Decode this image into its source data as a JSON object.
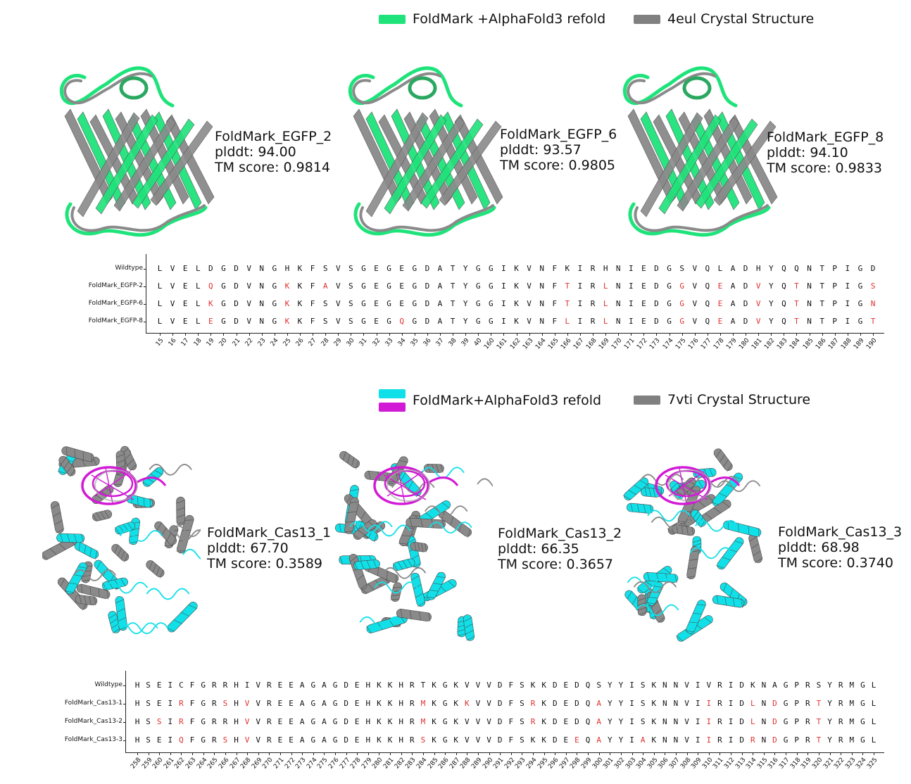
{
  "panels": [
    {
      "id": "egfp",
      "legend": [
        {
          "label": "FoldMark +AlphaFold3 refold",
          "colors": [
            "#1ee37a"
          ]
        },
        {
          "label": "4eul Crystal Structure",
          "colors": [
            "#808080"
          ]
        }
      ],
      "models": [
        {
          "name": "FoldMark_EGFP_2",
          "plddt": "plddt: 94.00",
          "tm": "TM score: 0.9814",
          "predicted_color": "#1ee37a"
        },
        {
          "name": "FoldMark_EGFP_6",
          "plddt": "plddt: 93.57",
          "tm": "TM score: 0.9805",
          "predicted_color": "#1ee37a"
        },
        {
          "name": "FoldMark_EGFP_8",
          "plddt": "plddt: 94.10",
          "tm": "TM score: 0.9833",
          "predicted_color": "#1ee37a"
        }
      ],
      "alignment": {
        "rows": [
          {
            "label": "Wildtype",
            "seq": "LVELDGDVNGHKFSVSGEGEGDATYGGIKVNFKIRHNIEDGSVQLADHYQQNTPIGD"
          },
          {
            "label": "FoldMark_EGFP-2",
            "seq": "LVELQGDVNGKKFAVSGEGEGDATYGGIKVNFTIRLNIEDGGVQEADVYQTNTPIGS"
          },
          {
            "label": "FoldMark_EGFP-6",
            "seq": "LVELKGDVNGKKFSVSGEGEGDATYGGIKVNFTIRLNIEDGGVQEADVYQTNTPIGN"
          },
          {
            "label": "FoldMark_EGFP-8",
            "seq": "LVELEGDVNGKKFSVSGEGQGDATYGGIKVNFLIRLNIEDGGVQEADVYQTNTPIGT"
          }
        ],
        "positions": [
          "15",
          "16",
          "17",
          "18",
          "19",
          "20",
          "21",
          "22",
          "23",
          "24",
          "25",
          "26",
          "27",
          "28",
          "29",
          "30",
          "31",
          "32",
          "33",
          "34",
          "35",
          "36",
          "37",
          "38",
          "39",
          "40",
          "160",
          "161",
          "162",
          "163",
          "164",
          "165",
          "166",
          "167",
          "168",
          "169",
          "170",
          "171",
          "172",
          "173",
          "174",
          "175",
          "176",
          "177",
          "178",
          "179",
          "180",
          "181",
          "182",
          "183",
          "184",
          "185",
          "186",
          "187",
          "188",
          "189",
          "190"
        ]
      }
    },
    {
      "id": "cas13",
      "legend": [
        {
          "label": "FoldMark+AlphaFold3 refold",
          "colors": [
            "#12e0e8",
            "#d21ad6"
          ]
        },
        {
          "label": "7vti Crystal Structure",
          "colors": [
            "#808080"
          ]
        }
      ],
      "models": [
        {
          "name": "FoldMark_Cas13_1",
          "plddt": "plddt: 67.70",
          "tm": "TM score: 0.3589",
          "predicted_color": "#12e0e8"
        },
        {
          "name": "FoldMark_Cas13_2",
          "plddt": "plddt: 66.35",
          "tm": "TM score: 0.3657",
          "predicted_color": "#12e0e8"
        },
        {
          "name": "FoldMark_Cas13_3",
          "plddt": "plddt: 68.98",
          "tm": "TM score: 0.3740",
          "predicted_color": "#12e0e8"
        }
      ],
      "alignment": {
        "rows": [
          {
            "label": "Wildtype",
            "seq": "HSEICFGRRHIVREEAGAGDEHKKHRTKGKVVVDFSKKDEDQSYYISKNNVIVRIDKNAGPRSYRMGL"
          },
          {
            "label": "FoldMark_Cas13-1",
            "seq": "HSEIRFGRSHVVREEAGAGDEHKKHRMKGKKVVDFSRKDEDQAYYISKNNVIIRIDLNDGPRTYRMGL"
          },
          {
            "label": "FoldMark_Cas13-2",
            "seq": "HSSIRFGRRHVVREEAGAGDEHKKHRMKGKVVVDFSRKDEDQAYYISKNNVIIRIDLNDGPRTYRMGL"
          },
          {
            "label": "FoldMark_Cas13-3",
            "seq": "HSEIQFGRSHVVREEAGAGDEHKKHRSKGKVVVDFSKKDEEQAYYIAKNNVIIRIDRNDGPRTYRMGL"
          }
        ],
        "positions": [
          "258",
          "259",
          "260",
          "261",
          "262",
          "263",
          "264",
          "265",
          "266",
          "267",
          "268",
          "269",
          "270",
          "271",
          "272",
          "273",
          "274",
          "275",
          "276",
          "277",
          "278",
          "279",
          "280",
          "281",
          "282",
          "283",
          "284",
          "285",
          "286",
          "287",
          "288",
          "289",
          "290",
          "291",
          "292",
          "293",
          "294",
          "295",
          "296",
          "297",
          "298",
          "299",
          "300",
          "301",
          "302",
          "303",
          "304",
          "305",
          "306",
          "307",
          "308",
          "309",
          "310",
          "311",
          "312",
          "313",
          "314",
          "315",
          "316",
          "317",
          "318",
          "319",
          "320",
          "321",
          "322",
          "323",
          "324",
          "325"
        ]
      }
    }
  ]
}
